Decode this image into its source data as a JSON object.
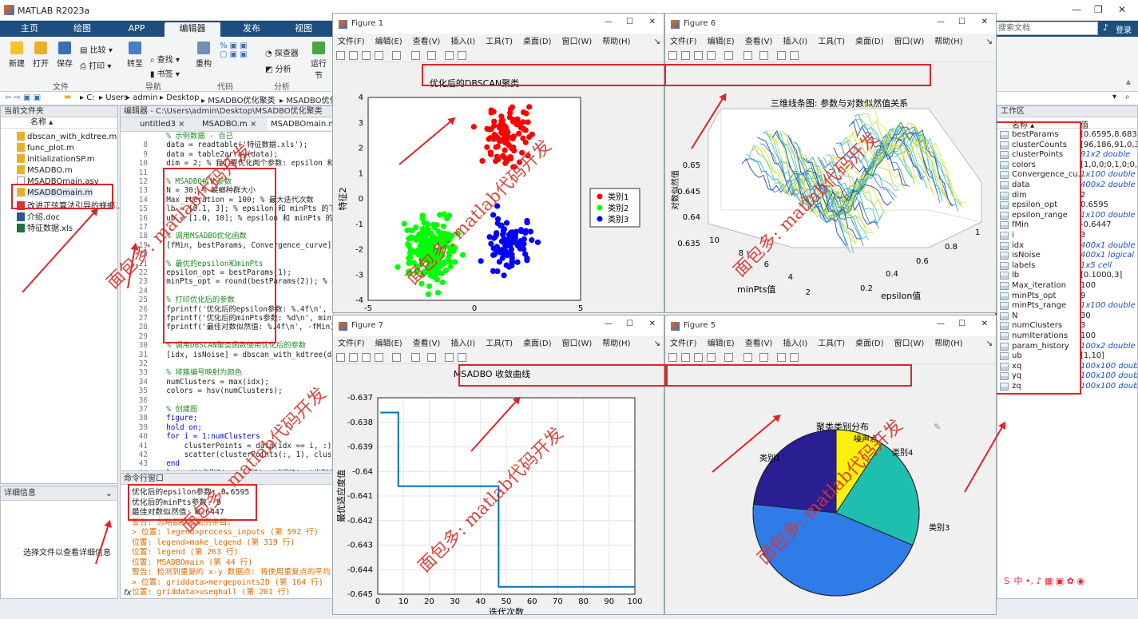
{
  "app": {
    "title": "MATLAB R2023a",
    "search": "搜索文档",
    "login": "登录"
  },
  "tabs": [
    "主页",
    "绘图",
    "APP",
    "编辑器",
    "发布",
    "视图"
  ],
  "ribbon": {
    "buttons": [
      "新建",
      "打开",
      "保存",
      "比较",
      "打印",
      "转至",
      "查找",
      "书签",
      "重构",
      "探查器",
      "分析",
      "运行",
      "节"
    ],
    "groups": [
      "文件",
      "导航",
      "代码",
      "分析"
    ]
  },
  "address": [
    "C:",
    "Users",
    "admin",
    "Desktop",
    "MSADBO优化聚类",
    "MSADBO优化kd"
  ],
  "current_folder": {
    "header": "当前文件夹",
    "col": "名称 ▴",
    "files": [
      "dbscan_with_kdtree.m",
      "func_plot.m",
      "initializationSP.m",
      "MSADBO.m",
      "MSADBOmain.asv",
      "MSADBOmain.m",
      "改进正弦算法引导的蜣螂...",
      "介绍.doc",
      "特征数据.xls"
    ]
  },
  "details": {
    "header": "详细信息",
    "text": "选择文件以查看详细信息"
  },
  "editor": {
    "path": "编辑器 - C:\\Users\\admin\\Desktop\\MSADBO优化聚类\\MSA",
    "tabs": [
      "untitled3 ×",
      "MSADBO.m ×",
      "MSADBOmain.m"
    ],
    "lines": [
      {
        "n": "",
        "t": "  % 示例数据 - 自己"
      },
      {
        "n": "8",
        "t": "  data = readtable('特征数据.xls');"
      },
      {
        "n": "9",
        "t": "  data = table2array(data);"
      },
      {
        "n": "10",
        "t": "  dim = 2; % 我们要优化两个参数: epsilon 和 m"
      },
      {
        "n": "11",
        "t": ""
      },
      {
        "n": "12",
        "t": "  % MSADBO优化参数"
      },
      {
        "n": "13",
        "t": "  N = 30; % 蜣螂种群大小"
      },
      {
        "n": "14",
        "t": "  Max_iteration = 100; % 最大迭代次数"
      },
      {
        "n": "15",
        "t": "  lb = [0.1, 3]; % epsilon 和 minPts 的下界"
      },
      {
        "n": "16",
        "t": "  ub = [1.0, 10]; % epsilon 和 minPts 的上界"
      },
      {
        "n": "17",
        "t": ""
      },
      {
        "n": "18",
        "t": "  % 调用MSADBO优化函数"
      },
      {
        "n": "19",
        "t": "  [fMin, bestParams, Convergence_curve] = M"
      },
      {
        "n": "20",
        "t": ""
      },
      {
        "n": "21",
        "t": "  % 最优的epsilon和minPts"
      },
      {
        "n": "22",
        "t": "  epsilon_opt = bestParams(1);"
      },
      {
        "n": "23",
        "t": "  minPts_opt = round(bestParams(2)); % minP"
      },
      {
        "n": "24",
        "t": ""
      },
      {
        "n": "25",
        "t": "  % 打印优化后的参数"
      },
      {
        "n": "26",
        "t": "  fprintf('优化后的epsilon参数: %.4f\\n', eps"
      },
      {
        "n": "27",
        "t": "  fprintf('优化后的minPts参数: %d\\n', minPts_"
      },
      {
        "n": "28",
        "t": "  fprintf('最佳对数似然值: %.4f\\n', -fMin);"
      },
      {
        "n": "29",
        "t": ""
      },
      {
        "n": "30",
        "t": "  % 调用DBSCAN聚类函数使用优化后的参数"
      },
      {
        "n": "31",
        "t": "  [idx, isNoise] = dbscan_with_kdtree(data,"
      },
      {
        "n": "32",
        "t": ""
      },
      {
        "n": "33",
        "t": "  % 将簇编号映射为颜色"
      },
      {
        "n": "34",
        "t": "  numClusters = max(idx);"
      },
      {
        "n": "35",
        "t": "  colors = hsv(numClusters);"
      },
      {
        "n": "36",
        "t": ""
      },
      {
        "n": "37",
        "t": "  % 创建图"
      },
      {
        "n": "38",
        "t": "  figure;"
      },
      {
        "n": "39",
        "t": "  hold on;"
      },
      {
        "n": "40",
        "t": "  for i = 1:numClusters"
      },
      {
        "n": "41",
        "t": "      clusterPoints = data(idx == i, :);"
      },
      {
        "n": "42",
        "t": "      scatter(clusterPoints(:, 1), clusterPo"
      },
      {
        "n": "43",
        "t": "  end"
      },
      {
        "n": "44",
        "t": "  legend('类别1', '类别2', '类别3', '类别4'"
      }
    ]
  },
  "command": {
    "header": "命令行窗口",
    "lines": [
      {
        "t": "优化后的epsilon参数: 0.6595",
        "c": ""
      },
      {
        "t": "优化后的minPts参数: 9",
        "c": ""
      },
      {
        "t": "最佳对数似然值: 0.6447",
        "c": ""
      },
      {
        "t": "警告: 忽略额外的图例条目。",
        "c": "or"
      },
      {
        "t": "> 位置: legend>process_inputs (第 592 行)",
        "c": "or"
      },
      {
        "t": "  位置: legend>make_legend (第 319 行)",
        "c": "or"
      },
      {
        "t": "  位置: legend (第 263 行)",
        "c": "or"
      },
      {
        "t": "  位置: MSADBOmain (第 44 行)",
        "c": "or"
      },
      {
        "t": "警告: 检测到重复的 x-y 数据点: 将使用重复点的平均",
        "c": "or"
      },
      {
        "t": "> 位置: griddata>mergepoints2D (第 164 行)",
        "c": "or"
      },
      {
        "t": "  位置: griddata>useqhull (第 201 行)",
        "c": "or"
      }
    ],
    "prompt": "fx"
  },
  "workspace": {
    "header": "工作区",
    "col_name": "名称 ▴",
    "col_value": "值",
    "vars": [
      {
        "n": "bestParams",
        "v": "[0.6595,8.6839]",
        "b": false
      },
      {
        "n": "clusterCounts",
        "v": "[96,186,91,0,38]",
        "b": false
      },
      {
        "n": "clusterPoints",
        "v": "91x2 double",
        "b": true
      },
      {
        "n": "colors",
        "v": "[1,0,0;0,1,0;0,0,1]",
        "b": false
      },
      {
        "n": "Convergence_cu...",
        "v": "1x100 double",
        "b": true
      },
      {
        "n": "data",
        "v": "400x2 double",
        "b": true
      },
      {
        "n": "dim",
        "v": "2",
        "b": false
      },
      {
        "n": "epsilon_opt",
        "v": "0.6595",
        "b": false
      },
      {
        "n": "epsilon_range",
        "v": "1x100 double",
        "b": true
      },
      {
        "n": "fMin",
        "v": "-0.6447",
        "b": false
      },
      {
        "n": "i",
        "v": "3",
        "b": false
      },
      {
        "n": "idx",
        "v": "400x1 double",
        "b": true
      },
      {
        "n": "isNoise",
        "v": "400x1 logical",
        "b": true
      },
      {
        "n": "labels",
        "v": "1x5 cell",
        "b": true
      },
      {
        "n": "lb",
        "v": "[0.1000,3]",
        "b": false
      },
      {
        "n": "Max_iteration",
        "v": "100",
        "b": false
      },
      {
        "n": "minPts_opt",
        "v": "9",
        "b": false
      },
      {
        "n": "minPts_range",
        "v": "1x100 double",
        "b": true
      },
      {
        "n": "N",
        "v": "30",
        "b": false
      },
      {
        "n": "numClusters",
        "v": "3",
        "b": false
      },
      {
        "n": "numIterations",
        "v": "100",
        "b": false
      },
      {
        "n": "param_history",
        "v": "100x2 double",
        "b": true
      },
      {
        "n": "ub",
        "v": "[1,10]",
        "b": false
      },
      {
        "n": "xq",
        "v": "100x100 double",
        "b": true
      },
      {
        "n": "yq",
        "v": "100x100 double",
        "b": true
      },
      {
        "n": "zq",
        "v": "100x100 double",
        "b": true
      }
    ]
  },
  "figmenu": [
    "文件(F)",
    "编辑(E)",
    "查看(V)",
    "插入(I)",
    "工具(T)",
    "桌面(D)",
    "窗口(W)",
    "帮助(H)"
  ],
  "watermark": "面包多: matlab代码开发",
  "chart_data": [
    {
      "type": "scatter",
      "figure": "Figure 1",
      "title": "优化后的DBSCAN聚类",
      "xlabel": "特征1",
      "ylabel": "特征2",
      "xlim": [
        -5,
        5
      ],
      "ylim": [
        -4,
        4
      ],
      "xticks": [
        "-5",
        "0",
        "5"
      ],
      "yticks": [
        "-4",
        "-3",
        "-2",
        "-1",
        "0",
        "1",
        "2",
        "3",
        "4"
      ],
      "series": [
        {
          "name": "类别1",
          "color": "#ff0000",
          "center": [
            1.7,
            2.5
          ],
          "spread": [
            0.85,
            0.8
          ],
          "count": 96
        },
        {
          "name": "类别2",
          "color": "#00ff00",
          "center": [
            -2,
            -2
          ],
          "spread": [
            0.85,
            0.85
          ],
          "count": 186
        },
        {
          "name": "类别3",
          "color": "#0000ff",
          "center": [
            1.7,
            -1.8
          ],
          "spread": [
            0.8,
            0.7
          ],
          "count": 91
        }
      ]
    },
    {
      "type": "surface",
      "figure": "Figure 6",
      "title": "三维线条图: 参数与对数似然值关系",
      "xlabel": "epsilon值",
      "ylabel": "minPts值",
      "zlabel": "对数似然值",
      "zticks": [
        "0.635",
        "0.64",
        "0.645",
        "0.65"
      ],
      "xticks": [
        "0.2",
        "0.4",
        "0.6",
        "0.8",
        "1"
      ],
      "yticks": [
        "2",
        "4",
        "6",
        "8",
        "10"
      ]
    },
    {
      "type": "line",
      "figure": "Figure 7",
      "title": "MSADBO 收敛曲线",
      "xlabel": "迭代次数",
      "ylabel": "最优适应度值",
      "xlim": [
        0,
        100
      ],
      "ylim": [
        -0.645,
        -0.637
      ],
      "xticks": [
        "0",
        "10",
        "20",
        "30",
        "40",
        "50",
        "60",
        "70",
        "80",
        "90",
        "100"
      ],
      "yticks": [
        "-0.637",
        "-0.638",
        "-0.639",
        "-0.64",
        "-0.641",
        "-0.642",
        "-0.643",
        "-0.644",
        "-0.645"
      ],
      "x": [
        1,
        8,
        8,
        47,
        47,
        100
      ],
      "y": [
        -0.6376,
        -0.6376,
        -0.6406,
        -0.6406,
        -0.6447,
        -0.6447
      ]
    },
    {
      "type": "pie",
      "figure": "Figure 5",
      "title": "聚类类别分布",
      "labels": [
        "类别1",
        "类别2",
        "类别3",
        "类别4",
        "噪声点"
      ],
      "values": [
        96,
        186,
        91,
        0,
        38
      ],
      "colors": [
        "#2a1e93",
        "#2f7be8",
        "#1fbfb0",
        "#ffffff",
        "#f9f00c"
      ]
    }
  ]
}
